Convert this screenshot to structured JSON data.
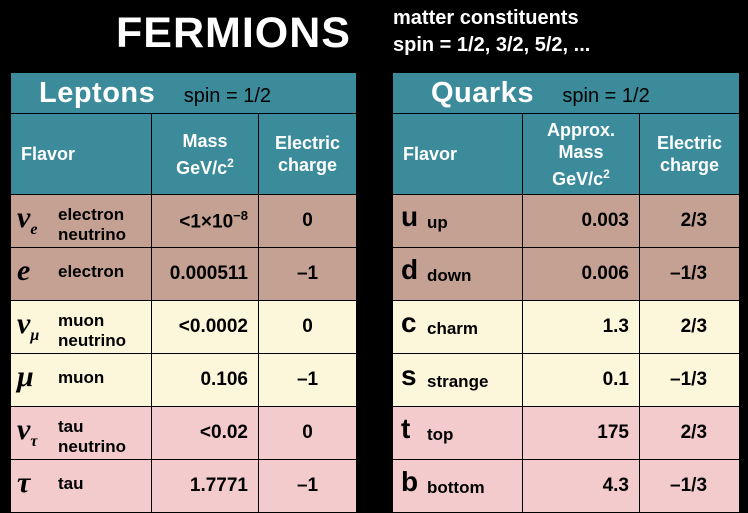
{
  "header": {
    "title": "FERMIONS",
    "subtitle_line1": "matter constituents",
    "subtitle_line2": "spin = 1/2, 3/2, 5/2, ..."
  },
  "leptons": {
    "title": "Leptons",
    "spin": "spin = 1/2",
    "columns": {
      "flavor": "Flavor",
      "mass_line1": "Mass",
      "mass_line2": "GeV/c",
      "mass_exp": "2",
      "charge_line1": "Electric",
      "charge_line2": "charge"
    },
    "rows": [
      {
        "symbol": "ν",
        "symbol_sub": "e",
        "name_line1": "electron",
        "name_line2": "neutrino",
        "mass": "<1×10",
        "mass_exp": "−8",
        "charge": "0"
      },
      {
        "symbol": "e",
        "name": "electron",
        "mass": "0.000511",
        "charge": "–1"
      },
      {
        "symbol": "ν",
        "symbol_sub": "μ",
        "name_line1": "muon",
        "name_line2": "neutrino",
        "mass": "<0.0002",
        "charge": "0"
      },
      {
        "symbol": "μ",
        "name": "muon",
        "mass": "0.106",
        "charge": "–1"
      },
      {
        "symbol": "ν",
        "symbol_sub": "τ",
        "name_line1": "tau",
        "name_line2": "neutrino",
        "mass": "<0.02",
        "charge": "0"
      },
      {
        "symbol": "τ",
        "name": "tau",
        "mass": "1.7771",
        "charge": "–1"
      }
    ]
  },
  "quarks": {
    "title": "Quarks",
    "spin": "spin = 1/2",
    "columns": {
      "flavor": "Flavor",
      "mass_line1": "Approx.",
      "mass_line2": "Mass",
      "mass_line3": "GeV/c",
      "mass_exp": "2",
      "charge_line1": "Electric",
      "charge_line2": "charge"
    },
    "rows": [
      {
        "symbol": "u",
        "name": "up",
        "mass": "0.003",
        "charge": "2/3"
      },
      {
        "symbol": "d",
        "name": "down",
        "mass": "0.006",
        "charge": "–1/3"
      },
      {
        "symbol": "c",
        "name": "charm",
        "mass": "1.3",
        "charge": "2/3"
      },
      {
        "symbol": "s",
        "name": "strange",
        "mass": "0.1",
        "charge": "–1/3"
      },
      {
        "symbol": "t",
        "name": "top",
        "mass": "175",
        "charge": "2/3"
      },
      {
        "symbol": "b",
        "name": "bottom",
        "mass": "4.3",
        "charge": "–1/3"
      }
    ]
  },
  "colors": {
    "header_bg": "#3b8b9b",
    "gen1": "#c5a194",
    "gen2": "#fcf6db",
    "gen3": "#f3cbcd",
    "background": "#000000"
  }
}
